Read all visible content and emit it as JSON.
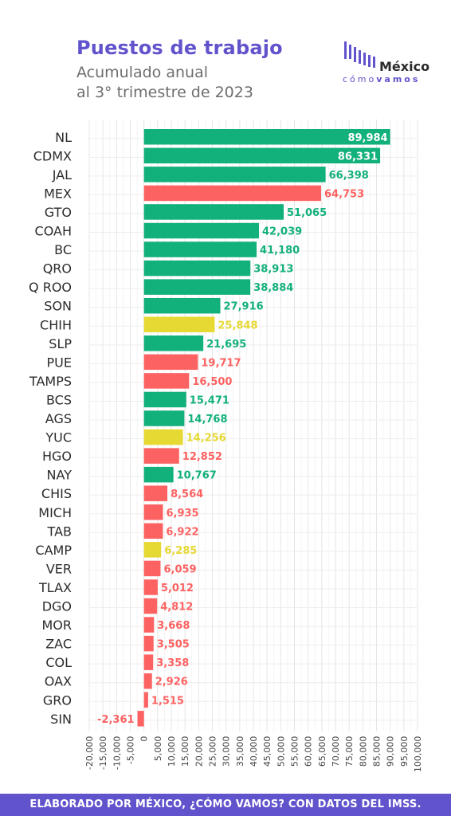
{
  "header": {
    "title": "Puestos de trabajo",
    "subtitle_line1": "Acumulado anual",
    "subtitle_line2": "al 3° trimestre de 2023"
  },
  "logo": {
    "word": "México",
    "sub_plain": "cómo",
    "sub_bold": "vamos"
  },
  "footer": {
    "text": "ELABORADO POR MÉXICO, ¿CÓMO VAMOS? CON DATOS DEL IMSS."
  },
  "colors": {
    "green": "#12b07a",
    "red": "#fd6262",
    "yellow": "#e7d933",
    "accent": "#6153cc"
  },
  "chart_data": {
    "type": "bar",
    "orientation": "horizontal",
    "xlim": [
      -20000,
      100000
    ],
    "grid": true,
    "xticks": [
      "-20,000",
      "-15,000",
      "-10,000",
      "-5,000",
      "0",
      "5,000",
      "10,000",
      "15,000",
      "20,000",
      "25,000",
      "30,000",
      "35,000",
      "40,000",
      "45,000",
      "50,000",
      "55,000",
      "60,000",
      "65,000",
      "70,000",
      "75,000",
      "80,000",
      "85,000",
      "90,000",
      "95,000",
      "100,000"
    ],
    "categories": [
      "NL",
      "CDMX",
      "JAL",
      "MEX",
      "GTO",
      "COAH",
      "BC",
      "QRO",
      "Q ROO",
      "SON",
      "CHIH",
      "SLP",
      "PUE",
      "TAMPS",
      "BCS",
      "AGS",
      "YUC",
      "HGO",
      "NAY",
      "CHIS",
      "MICH",
      "TAB",
      "CAMP",
      "VER",
      "TLAX",
      "DGO",
      "MOR",
      "ZAC",
      "COL",
      "OAX",
      "GRO",
      "SIN"
    ],
    "values": [
      89984,
      86331,
      66398,
      64753,
      51065,
      42039,
      41180,
      38913,
      38884,
      27916,
      25848,
      21695,
      19717,
      16500,
      15471,
      14768,
      14256,
      12852,
      10767,
      8564,
      6935,
      6922,
      6285,
      6059,
      5012,
      4812,
      3668,
      3505,
      3358,
      2926,
      1515,
      -2361
    ],
    "labels": [
      "89,984",
      "86,331",
      "66,398",
      "64,753",
      "51,065",
      "42,039",
      "41,180",
      "38,913",
      "38,884",
      "27,916",
      "25,848",
      "21,695",
      "19,717",
      "16,500",
      "15,471",
      "14,768",
      "14,256",
      "12,852",
      "10,767",
      "8,564",
      "6,935",
      "6,922",
      "6,285",
      "6,059",
      "5,012",
      "4,812",
      "3,668",
      "3,505",
      "3,358",
      "2,926",
      "1,515",
      "-2,361"
    ],
    "bar_colors": [
      "green",
      "green",
      "green",
      "red",
      "green",
      "green",
      "green",
      "green",
      "green",
      "green",
      "yellow",
      "green",
      "red",
      "red",
      "green",
      "green",
      "yellow",
      "red",
      "green",
      "red",
      "red",
      "red",
      "yellow",
      "red",
      "red",
      "red",
      "red",
      "red",
      "red",
      "red",
      "red",
      "red"
    ],
    "labels_inside": [
      "NL",
      "CDMX"
    ]
  }
}
